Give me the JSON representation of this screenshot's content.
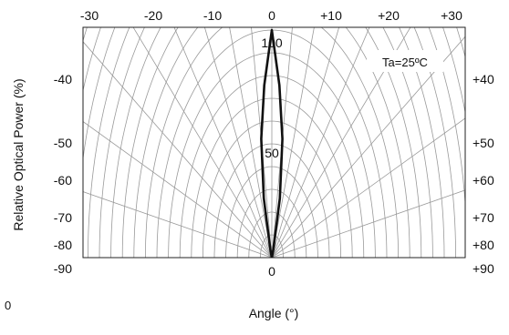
{
  "chart_data": {
    "type": "line",
    "coordinate_system": "polar",
    "title": "",
    "xlabel": "Angle  (°)",
    "ylabel": "Relative Optical Power  (%)",
    "annotation": "Ta=25ºC",
    "top_ticks": [
      "-30",
      "-20",
      "-10",
      "0",
      "+10",
      "+20",
      "+30"
    ],
    "left_ticks": [
      "-40",
      "-50",
      "-60",
      "-70",
      "-80",
      "-90"
    ],
    "right_ticks": [
      "+40",
      "+50",
      "+60",
      "+70",
      "+80",
      "+90"
    ],
    "bottom_tick": "0",
    "bottom_left_stray": "0",
    "radial_labels": [
      "100",
      "50"
    ],
    "angle_range": [
      -90,
      90
    ],
    "radius_range": [
      0,
      100
    ],
    "grid": true,
    "series": [
      {
        "angles": [
          -90,
          -80,
          -70,
          -60,
          -50,
          -40,
          -30,
          -25,
          -20,
          -15,
          -10,
          -5,
          0,
          5,
          10,
          15,
          20,
          25,
          30,
          40,
          50,
          60,
          70,
          80,
          90
        ],
        "values": [
          0,
          0,
          0,
          0,
          0,
          0,
          0,
          1,
          4,
          27,
          53,
          76,
          100,
          76,
          53,
          27,
          4,
          1,
          0,
          0,
          0,
          0,
          0,
          0,
          0
        ]
      }
    ]
  }
}
